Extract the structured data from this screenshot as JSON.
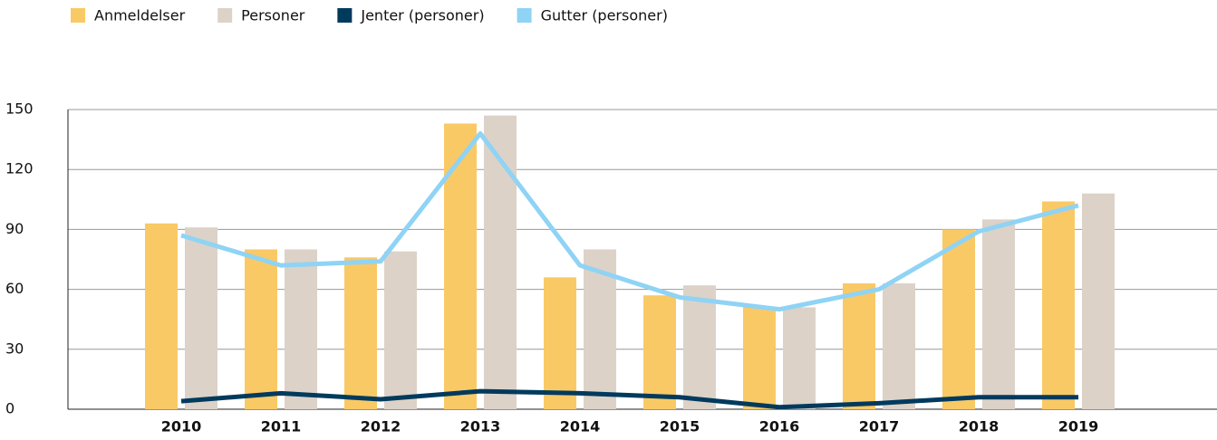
{
  "chart_data": {
    "type": "bar_line",
    "categories": [
      "2010",
      "2011",
      "2012",
      "2013",
      "2014",
      "2015",
      "2016",
      "2017",
      "2018",
      "2019"
    ],
    "series": [
      {
        "name": "Anmeldelser",
        "type": "bar",
        "color": "#f9c966",
        "values": [
          93,
          80,
          76,
          143,
          66,
          57,
          51,
          63,
          90,
          104
        ]
      },
      {
        "name": "Personer",
        "type": "bar",
        "color": "#dcd2c8",
        "values": [
          91,
          80,
          79,
          147,
          80,
          62,
          51,
          63,
          95,
          108
        ]
      },
      {
        "name": "Jenter (personer)",
        "type": "line",
        "color": "#003a5d",
        "values": [
          4,
          8,
          5,
          9,
          8,
          6,
          1,
          3,
          6,
          6
        ]
      },
      {
        "name": "Gutter (personer)",
        "type": "line",
        "color": "#8fd3f5",
        "values": [
          87,
          72,
          74,
          138,
          72,
          56,
          50,
          60,
          89,
          102
        ]
      }
    ],
    "ylim": [
      0,
      150
    ],
    "yticks": [
      0,
      30,
      60,
      90,
      120,
      150
    ],
    "grid": true,
    "legend": "top-left"
  }
}
